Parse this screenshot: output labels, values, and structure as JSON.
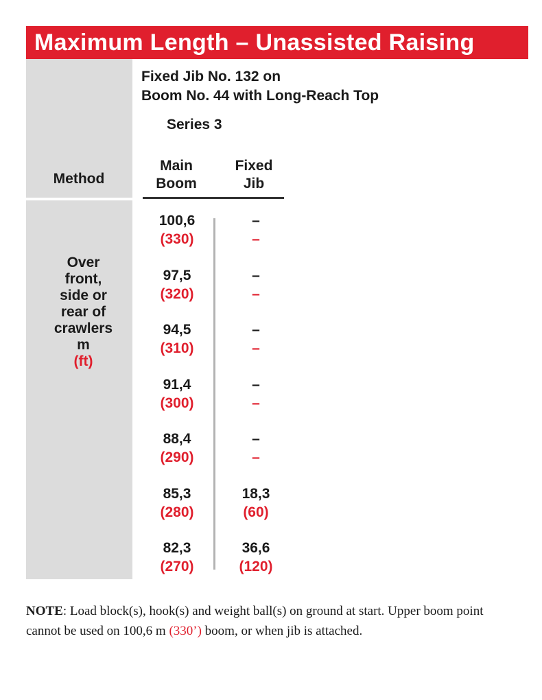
{
  "title": "Maximum Length – Unassisted Raising",
  "config": {
    "line1": "Fixed Jib No. 132 on",
    "line2": "Boom No. 44 with Long-Reach Top",
    "series": "Series 3"
  },
  "headers": {
    "method": "Method",
    "main_line1": "Main",
    "main_line2": "Boom",
    "jib_line1": "Fixed",
    "jib_line2": "Jib"
  },
  "method": {
    "lines": [
      "Over",
      "front,",
      "side or",
      "rear of",
      "crawlers"
    ],
    "unit_metric": "m",
    "unit_imperial": "(ft)"
  },
  "rows": [
    {
      "main_m": "100,6",
      "main_ft": "(330)",
      "jib_m": "–",
      "jib_ft": "–"
    },
    {
      "main_m": "97,5",
      "main_ft": "(320)",
      "jib_m": "–",
      "jib_ft": "–"
    },
    {
      "main_m": "94,5",
      "main_ft": "(310)",
      "jib_m": "–",
      "jib_ft": "–"
    },
    {
      "main_m": "91,4",
      "main_ft": "(300)",
      "jib_m": "–",
      "jib_ft": "–"
    },
    {
      "main_m": "88,4",
      "main_ft": "(290)",
      "jib_m": "–",
      "jib_ft": "–"
    },
    {
      "main_m": "85,3",
      "main_ft": "(280)",
      "jib_m": "18,3",
      "jib_ft": "(60)"
    },
    {
      "main_m": "82,3",
      "main_ft": "(270)",
      "jib_m": "36,6",
      "jib_ft": "(120)"
    }
  ],
  "note": {
    "label": "NOTE",
    "part1": ": Load block(s), hook(s) and weight ball(s) on ground at start. Upper boom point cannot be used on 100,6 m ",
    "highlight": "(330’)",
    "part2": " boom, or when jib is attached."
  },
  "colors": {
    "accent": "#e01f2d",
    "panel": "#dcdcdc"
  }
}
